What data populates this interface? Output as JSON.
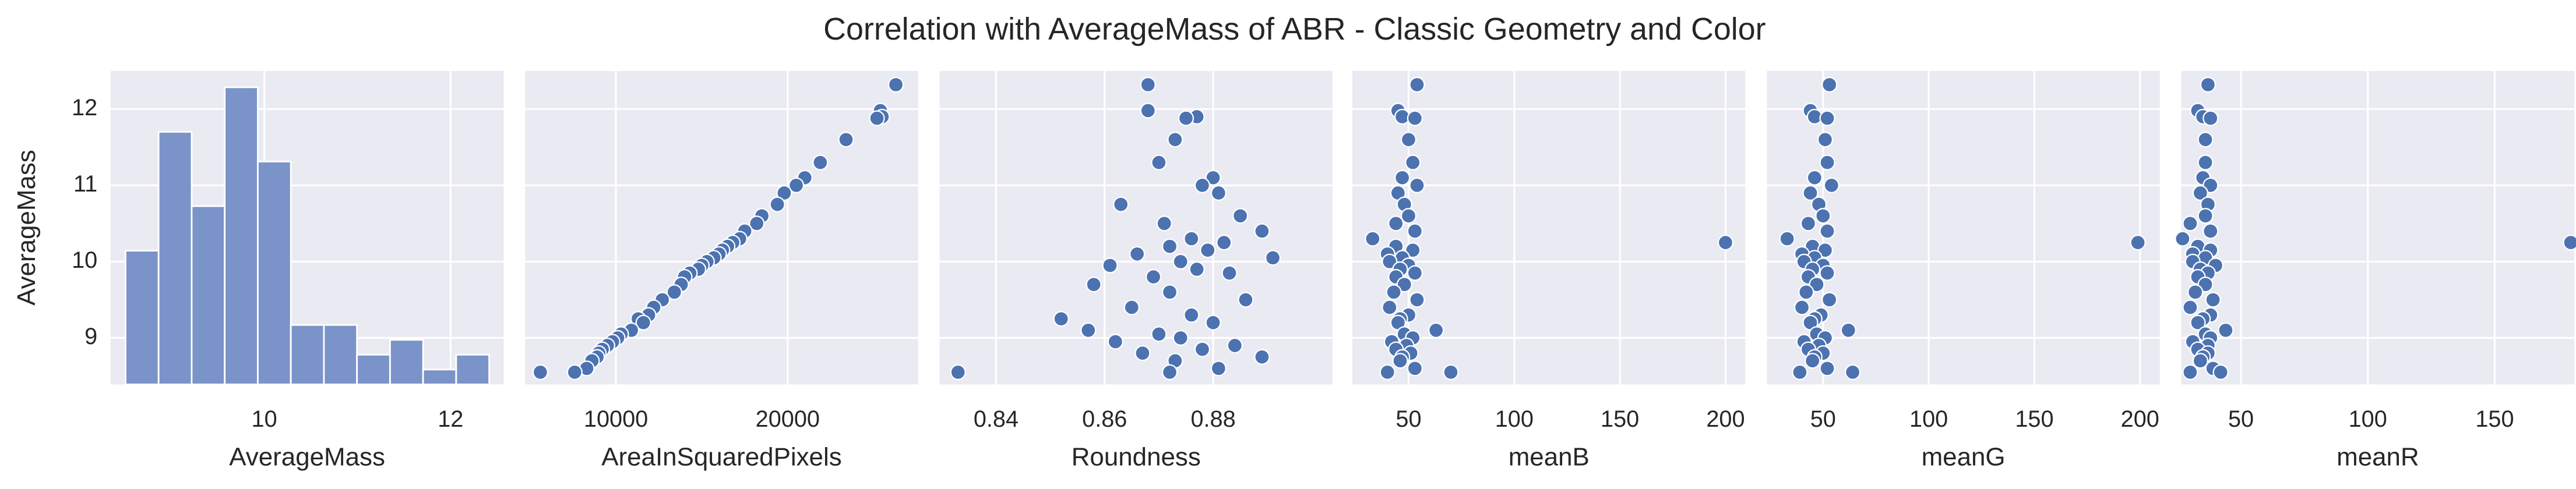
{
  "chart_data": {
    "title": "Correlation with AverageMass of ABR - Classic Geometry and Color",
    "ylabel": "AverageMass",
    "ylim": [
      8.39,
      12.5
    ],
    "yticks": [
      9,
      10,
      11,
      12
    ],
    "grid": true,
    "y": [
      12.32,
      11.98,
      11.9,
      11.88,
      11.6,
      11.3,
      11.1,
      11.0,
      10.9,
      10.75,
      10.6,
      10.5,
      10.4,
      10.3,
      10.25,
      10.2,
      10.15,
      10.1,
      10.05,
      10.0,
      9.95,
      9.9,
      9.85,
      9.8,
      9.7,
      9.6,
      9.5,
      9.4,
      9.3,
      9.25,
      9.2,
      9.1,
      9.05,
      9.0,
      8.95,
      8.9,
      8.85,
      8.8,
      8.75,
      8.7,
      8.6,
      8.55,
      8.55
    ],
    "panels": [
      {
        "type": "histogram",
        "xlabel": "AverageMass",
        "color": "#7a93c9",
        "bins": [
          8.51,
          8.865,
          9.22,
          9.575,
          9.93,
          10.285,
          10.64,
          10.995,
          11.35,
          11.705,
          12.06,
          12.415
        ],
        "counts": [
          9,
          17,
          12,
          20,
          15,
          4,
          4,
          2,
          3,
          1,
          2
        ],
        "ylim": [
          0,
          21.1
        ],
        "xlim": [
          8.35,
          12.57
        ],
        "xticks": [
          10,
          12
        ]
      },
      {
        "type": "scatter",
        "xlabel": "AreaInSquaredPixels",
        "color": "#4c72b0",
        "x": [
          26300,
          25400,
          25500,
          25200,
          23400,
          21900,
          21000,
          20500,
          19800,
          19400,
          18500,
          18200,
          17500,
          17200,
          16800,
          16500,
          16200,
          16000,
          15700,
          15300,
          15000,
          14800,
          14300,
          14000,
          13800,
          13400,
          12700,
          12200,
          11900,
          11300,
          11600,
          10900,
          10300,
          10100,
          9800,
          9500,
          9200,
          9000,
          8900,
          8600,
          8300,
          7600,
          5600
        ],
        "xlim": [
          4712,
          27596
        ],
        "xticks": [
          10000,
          20000
        ]
      },
      {
        "type": "scatter",
        "xlabel": "Roundness",
        "color": "#4c72b0",
        "x": [
          0.868,
          0.868,
          0.877,
          0.875,
          0.873,
          0.87,
          0.88,
          0.878,
          0.881,
          0.863,
          0.885,
          0.871,
          0.889,
          0.876,
          0.882,
          0.872,
          0.879,
          0.866,
          0.891,
          0.874,
          0.861,
          0.877,
          0.883,
          0.869,
          0.858,
          0.872,
          0.886,
          0.865,
          0.876,
          0.852,
          0.88,
          0.857,
          0.87,
          0.874,
          0.862,
          0.884,
          0.878,
          0.867,
          0.889,
          0.873,
          0.881,
          0.872,
          0.833
        ],
        "xlim": [
          0.8296,
          0.902
        ],
        "xticks": [
          0.84,
          0.86,
          0.88
        ]
      },
      {
        "type": "scatter",
        "xlabel": "meanB",
        "color": "#4c72b0",
        "x": [
          54,
          45,
          47,
          53,
          50,
          52,
          47,
          54,
          45,
          48,
          50,
          44,
          53,
          33,
          200,
          44,
          52,
          40,
          47,
          41,
          50,
          46,
          53,
          44,
          48,
          43,
          54,
          41,
          50,
          46,
          45,
          63,
          48,
          52,
          42,
          49,
          44,
          51,
          47,
          46,
          53,
          40,
          70
        ],
        "xlim": [
          23.4,
          209.4
        ],
        "xticks": [
          50,
          100,
          150,
          200
        ]
      },
      {
        "type": "scatter",
        "xlabel": "meanG",
        "color": "#4c72b0",
        "x": [
          53,
          44,
          46,
          52,
          51,
          52,
          46,
          54,
          44,
          48,
          50,
          43,
          52,
          33,
          199,
          45,
          51,
          40,
          46,
          41,
          50,
          45,
          52,
          43,
          47,
          42,
          53,
          40,
          49,
          46,
          44,
          62,
          47,
          51,
          41,
          48,
          43,
          50,
          46,
          45,
          52,
          39,
          64
        ],
        "xlim": [
          23.4,
          209.4
        ],
        "xticks": [
          50,
          100,
          150,
          200
        ]
      },
      {
        "type": "scatter",
        "xlabel": "meanR",
        "color": "#4c72b0",
        "x": [
          37,
          33,
          35,
          38,
          36,
          36,
          35,
          38,
          34,
          37,
          36,
          30,
          38,
          27,
          180,
          33,
          38,
          31,
          36,
          31,
          40,
          34,
          37,
          33,
          36,
          32,
          39,
          30,
          38,
          35,
          33,
          44,
          36,
          38,
          31,
          37,
          33,
          37,
          35,
          34,
          39,
          30,
          42
        ],
        "xlim": [
          26.5,
          181.4
        ],
        "xticks": [
          50,
          100,
          150
        ]
      }
    ]
  }
}
